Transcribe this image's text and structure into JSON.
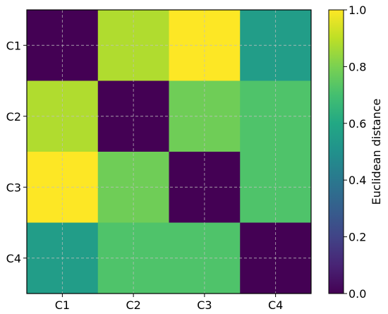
{
  "chart_data": {
    "type": "heatmap",
    "title": "",
    "x_categories": [
      "C1",
      "C2",
      "C3",
      "C4"
    ],
    "y_categories": [
      "C1",
      "C2",
      "C3",
      "C4"
    ],
    "values": [
      [
        0.0,
        0.88,
        1.0,
        0.55
      ],
      [
        0.88,
        0.0,
        0.78,
        0.72
      ],
      [
        1.0,
        0.78,
        0.0,
        0.72
      ],
      [
        0.55,
        0.72,
        0.72,
        0.0
      ]
    ],
    "colorbar": {
      "label": "Euclidean distance",
      "range": [
        0.0,
        1.0
      ],
      "ticks": [
        "0.0",
        "0.2",
        "0.4",
        "0.6",
        "0.8",
        "1.0"
      ]
    },
    "colormap": "viridis",
    "grid": true
  }
}
